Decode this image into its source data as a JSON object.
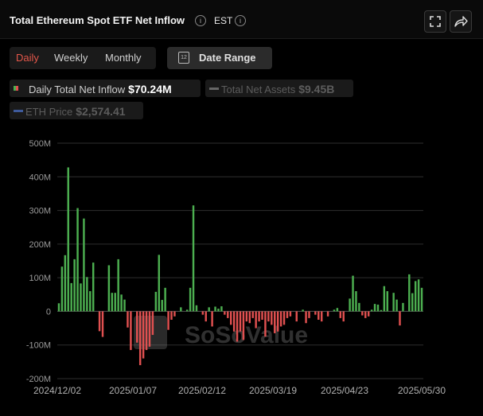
{
  "header": {
    "title": "Total Ethereum Spot ETF Net Inflow",
    "timezone": "EST",
    "info_icon": "info-icon",
    "expand_icon": "expand-icon",
    "share_icon": "share-icon"
  },
  "tabs": [
    {
      "label": "Daily",
      "active": true
    },
    {
      "label": "Weekly",
      "active": false
    },
    {
      "label": "Monthly",
      "active": false
    }
  ],
  "date_range": {
    "label": "Date Range",
    "icon": "calendar-icon",
    "icon_text": "12"
  },
  "legend": {
    "daily": {
      "label": "Daily Total Net Inflow",
      "value": "$70.24M"
    },
    "assets": {
      "label": "Total Net Assets",
      "value": "$9.45B"
    },
    "eth": {
      "label": "ETH Price",
      "value": "$2,574.41"
    }
  },
  "watermark": "SoSoValue",
  "colors": {
    "positive": "#4caf50",
    "negative": "#e05050",
    "accent": "#e4574a"
  },
  "chart_data": {
    "type": "bar",
    "title": "Total Ethereum Spot ETF Net Inflow",
    "ylim": [
      -200,
      500
    ],
    "y_ticks": [
      500,
      400,
      300,
      200,
      100,
      0,
      -100,
      -200
    ],
    "y_tick_labels": [
      "500M",
      "400M",
      "300M",
      "200M",
      "100M",
      "0",
      "-100M",
      "-200M"
    ],
    "x_tick_labels": [
      "2024/12/02",
      "2025/01/07",
      "2025/02/12",
      "2025/03/19",
      "2025/04/23",
      "2025/05/30"
    ],
    "series": [
      {
        "values": [
          24,
          133,
          167,
          428,
          84,
          155,
          307,
          83,
          276,
          102,
          60,
          145,
          0,
          -59,
          -76,
          0,
          137,
          55,
          55,
          155,
          50,
          35,
          -48,
          -115,
          0,
          -93,
          -160,
          -140,
          -115,
          -105,
          -70,
          58,
          168,
          34,
          70,
          -55,
          -25,
          -15,
          0,
          12,
          0,
          5,
          70,
          315,
          18,
          0,
          -10,
          -30,
          12,
          -45,
          14,
          8,
          15,
          -10,
          -20,
          -40,
          -60,
          -90,
          -60,
          -85,
          -30,
          -35,
          -20,
          -50,
          -30,
          -25,
          -75,
          -30,
          -40,
          -65,
          -60,
          -45,
          -40,
          -20,
          -15,
          0,
          -30,
          0,
          5,
          -35,
          -20,
          0,
          -10,
          -25,
          -30,
          0,
          -15,
          0,
          5,
          10,
          -20,
          -30,
          0,
          38,
          106,
          60,
          25,
          -12,
          -20,
          -15,
          5,
          22,
          20,
          4,
          75,
          60,
          0,
          55,
          35,
          -42,
          25,
          0,
          110,
          54,
          90,
          95,
          70
        ]
      }
    ]
  }
}
